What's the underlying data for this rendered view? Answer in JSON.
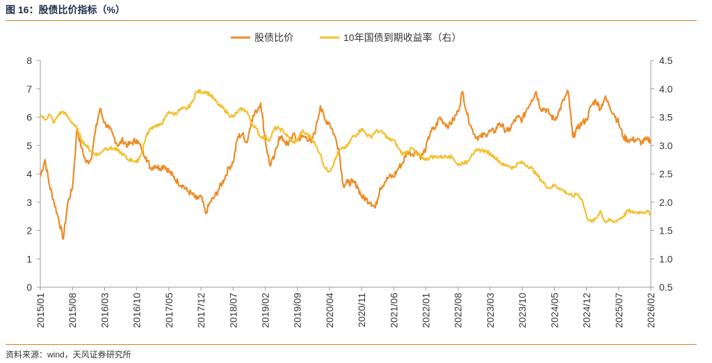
{
  "figure": {
    "title": "图 16：股债比价指标（%）",
    "source": "资料来源：wind，天风证券研究所"
  },
  "colors": {
    "accent": "#e07a1f",
    "series1": "#ee8a22",
    "series2": "#f5be2a",
    "axis": "#999999"
  },
  "chart_data": {
    "type": "line",
    "title": "",
    "grid": false,
    "legend_position": "top-center",
    "x_tick_labels": [
      "2015/01",
      "2015/08",
      "2016/03",
      "2016/10",
      "2017/05",
      "2017/12",
      "2018/07",
      "2019/02",
      "2019/09",
      "2020/04",
      "2020/11",
      "2021/06",
      "2022/01",
      "2022/08",
      "2023/03",
      "2023/10",
      "2024/05",
      "2024/12",
      "2025/07",
      "2026/02"
    ],
    "xlim": [
      "2015/01",
      "2026/02"
    ],
    "y_left": {
      "ylim": [
        0,
        8
      ],
      "ticks": [
        "0",
        "1",
        "2",
        "3",
        "4",
        "5",
        "6",
        "7",
        "8"
      ]
    },
    "y_right": {
      "ylim": [
        0.5,
        4.5
      ],
      "ticks": [
        "0.5",
        "1.0",
        "1.5",
        "2.0",
        "2.5",
        "3.0",
        "3.5",
        "4.0",
        "4.5"
      ]
    },
    "series": [
      {
        "name": "股债比价",
        "axis": "left",
        "color": "#ee8a22",
        "points": [
          [
            "2015/01",
            3.9
          ],
          [
            "2015/02",
            4.5
          ],
          [
            "2015/03",
            3.6
          ],
          [
            "2015/04",
            3.0
          ],
          [
            "2015/05",
            2.4
          ],
          [
            "2015/06",
            1.7
          ],
          [
            "2015/07",
            3.0
          ],
          [
            "2015/08",
            3.5
          ],
          [
            "2015/09",
            5.6
          ],
          [
            "2015/10",
            4.9
          ],
          [
            "2015/11",
            4.4
          ],
          [
            "2015/12",
            4.5
          ],
          [
            "2016/01",
            5.5
          ],
          [
            "2016/02",
            6.3
          ],
          [
            "2016/03",
            5.8
          ],
          [
            "2016/04",
            5.6
          ],
          [
            "2016/05",
            5.3
          ],
          [
            "2016/06",
            5.0
          ],
          [
            "2016/07",
            5.2
          ],
          [
            "2016/08",
            5.0
          ],
          [
            "2016/09",
            5.1
          ],
          [
            "2016/10",
            5.2
          ],
          [
            "2016/11",
            4.9
          ],
          [
            "2016/12",
            4.6
          ],
          [
            "2017/01",
            4.2
          ],
          [
            "2017/02",
            4.3
          ],
          [
            "2017/03",
            4.2
          ],
          [
            "2017/04",
            4.3
          ],
          [
            "2017/05",
            4.1
          ],
          [
            "2017/06",
            3.9
          ],
          [
            "2017/07",
            3.7
          ],
          [
            "2017/08",
            3.6
          ],
          [
            "2017/09",
            3.4
          ],
          [
            "2017/10",
            3.3
          ],
          [
            "2017/11",
            3.1
          ],
          [
            "2017/12",
            3.2
          ],
          [
            "2018/01",
            2.6
          ],
          [
            "2018/02",
            3.0
          ],
          [
            "2018/03",
            3.2
          ],
          [
            "2018/04",
            3.5
          ],
          [
            "2018/05",
            3.8
          ],
          [
            "2018/06",
            4.2
          ],
          [
            "2018/07",
            4.4
          ],
          [
            "2018/08",
            5.3
          ],
          [
            "2018/09",
            5.4
          ],
          [
            "2018/10",
            5.1
          ],
          [
            "2018/11",
            5.9
          ],
          [
            "2018/12",
            6.2
          ],
          [
            "2019/01",
            6.5
          ],
          [
            "2019/02",
            5.2
          ],
          [
            "2019/03",
            4.3
          ],
          [
            "2019/04",
            4.6
          ],
          [
            "2019/05",
            5.3
          ],
          [
            "2019/06",
            5.2
          ],
          [
            "2019/07",
            5.0
          ],
          [
            "2019/08",
            5.4
          ],
          [
            "2019/09",
            5.2
          ],
          [
            "2019/10",
            5.3
          ],
          [
            "2019/11",
            5.3
          ],
          [
            "2019/12",
            5.1
          ],
          [
            "2020/01",
            5.6
          ],
          [
            "2020/02",
            6.4
          ],
          [
            "2020/03",
            5.9
          ],
          [
            "2020/04",
            5.8
          ],
          [
            "2020/05",
            5.4
          ],
          [
            "2020/06",
            4.9
          ],
          [
            "2020/07",
            3.6
          ],
          [
            "2020/08",
            3.7
          ],
          [
            "2020/09",
            3.7
          ],
          [
            "2020/10",
            3.6
          ],
          [
            "2020/11",
            3.2
          ],
          [
            "2020/12",
            3.1
          ],
          [
            "2021/01",
            3.0
          ],
          [
            "2021/02",
            2.8
          ],
          [
            "2021/03",
            3.5
          ],
          [
            "2021/04",
            3.7
          ],
          [
            "2021/05",
            3.9
          ],
          [
            "2021/06",
            3.9
          ],
          [
            "2021/07",
            4.2
          ],
          [
            "2021/08",
            4.4
          ],
          [
            "2021/09",
            4.8
          ],
          [
            "2021/10",
            4.7
          ],
          [
            "2021/11",
            4.8
          ],
          [
            "2021/12",
            4.6
          ],
          [
            "2022/01",
            4.9
          ],
          [
            "2022/02",
            5.5
          ],
          [
            "2022/03",
            5.6
          ],
          [
            "2022/04",
            6.0
          ],
          [
            "2022/05",
            5.8
          ],
          [
            "2022/06",
            5.7
          ],
          [
            "2022/07",
            5.9
          ],
          [
            "2022/08",
            6.2
          ],
          [
            "2022/09",
            6.9
          ],
          [
            "2022/10",
            6.1
          ],
          [
            "2022/11",
            5.6
          ],
          [
            "2022/12",
            5.3
          ],
          [
            "2023/01",
            5.3
          ],
          [
            "2023/02",
            5.4
          ],
          [
            "2023/03",
            5.5
          ],
          [
            "2023/04",
            5.5
          ],
          [
            "2023/05",
            5.8
          ],
          [
            "2023/06",
            5.6
          ],
          [
            "2023/07",
            5.5
          ],
          [
            "2023/08",
            5.8
          ],
          [
            "2023/09",
            6.0
          ],
          [
            "2023/10",
            5.9
          ],
          [
            "2023/11",
            6.3
          ],
          [
            "2023/12",
            6.6
          ],
          [
            "2024/01",
            6.9
          ],
          [
            "2024/02",
            6.3
          ],
          [
            "2024/03",
            6.3
          ],
          [
            "2024/04",
            6.1
          ],
          [
            "2024/05",
            5.9
          ],
          [
            "2024/06",
            6.2
          ],
          [
            "2024/07",
            6.6
          ],
          [
            "2024/08",
            6.9
          ],
          [
            "2024/09",
            5.3
          ],
          [
            "2024/10",
            5.6
          ],
          [
            "2024/11",
            5.8
          ],
          [
            "2024/12",
            5.9
          ],
          [
            "2025/01",
            6.4
          ],
          [
            "2025/02",
            6.6
          ],
          [
            "2025/03",
            6.3
          ],
          [
            "2025/04",
            6.7
          ],
          [
            "2025/05",
            6.4
          ],
          [
            "2025/06",
            6.1
          ],
          [
            "2025/07",
            5.8
          ],
          [
            "2025/08",
            5.3
          ],
          [
            "2025/09",
            5.2
          ],
          [
            "2025/10",
            5.2
          ],
          [
            "2025/11",
            5.2
          ],
          [
            "2025/12",
            5.1
          ],
          [
            "2026/01",
            5.2
          ],
          [
            "2026/02",
            5.2
          ]
        ]
      },
      {
        "name": "10年国债到期收益率（右）",
        "axis": "right",
        "color": "#f5be2a",
        "points": [
          [
            "2015/01",
            3.55
          ],
          [
            "2015/02",
            3.45
          ],
          [
            "2015/03",
            3.55
          ],
          [
            "2015/04",
            3.4
          ],
          [
            "2015/05",
            3.55
          ],
          [
            "2015/06",
            3.6
          ],
          [
            "2015/07",
            3.5
          ],
          [
            "2015/08",
            3.4
          ],
          [
            "2015/09",
            3.3
          ],
          [
            "2015/10",
            3.1
          ],
          [
            "2015/11",
            3.0
          ],
          [
            "2015/12",
            2.9
          ],
          [
            "2016/01",
            2.85
          ],
          [
            "2016/02",
            2.85
          ],
          [
            "2016/03",
            2.95
          ],
          [
            "2016/04",
            2.95
          ],
          [
            "2016/05",
            2.95
          ],
          [
            "2016/06",
            2.9
          ],
          [
            "2016/07",
            2.85
          ],
          [
            "2016/08",
            2.75
          ],
          [
            "2016/09",
            2.75
          ],
          [
            "2016/10",
            2.7
          ],
          [
            "2016/11",
            2.85
          ],
          [
            "2016/12",
            3.15
          ],
          [
            "2017/01",
            3.3
          ],
          [
            "2017/02",
            3.35
          ],
          [
            "2017/03",
            3.35
          ],
          [
            "2017/04",
            3.45
          ],
          [
            "2017/05",
            3.6
          ],
          [
            "2017/06",
            3.55
          ],
          [
            "2017/07",
            3.6
          ],
          [
            "2017/08",
            3.65
          ],
          [
            "2017/09",
            3.65
          ],
          [
            "2017/10",
            3.75
          ],
          [
            "2017/11",
            3.95
          ],
          [
            "2017/12",
            3.95
          ],
          [
            "2018/01",
            3.95
          ],
          [
            "2018/02",
            3.9
          ],
          [
            "2018/03",
            3.8
          ],
          [
            "2018/04",
            3.7
          ],
          [
            "2018/05",
            3.65
          ],
          [
            "2018/06",
            3.55
          ],
          [
            "2018/07",
            3.5
          ],
          [
            "2018/08",
            3.6
          ],
          [
            "2018/09",
            3.65
          ],
          [
            "2018/10",
            3.6
          ],
          [
            "2018/11",
            3.4
          ],
          [
            "2018/12",
            3.3
          ],
          [
            "2019/01",
            3.15
          ],
          [
            "2019/02",
            3.15
          ],
          [
            "2019/03",
            3.1
          ],
          [
            "2019/04",
            3.3
          ],
          [
            "2019/05",
            3.3
          ],
          [
            "2019/06",
            3.25
          ],
          [
            "2019/07",
            3.15
          ],
          [
            "2019/08",
            3.05
          ],
          [
            "2019/09",
            3.1
          ],
          [
            "2019/10",
            3.25
          ],
          [
            "2019/11",
            3.2
          ],
          [
            "2019/12",
            3.15
          ],
          [
            "2020/01",
            3.0
          ],
          [
            "2020/02",
            2.85
          ],
          [
            "2020/03",
            2.6
          ],
          [
            "2020/04",
            2.55
          ],
          [
            "2020/05",
            2.7
          ],
          [
            "2020/06",
            2.9
          ],
          [
            "2020/07",
            2.95
          ],
          [
            "2020/08",
            3.0
          ],
          [
            "2020/09",
            3.15
          ],
          [
            "2020/10",
            3.2
          ],
          [
            "2020/11",
            3.3
          ],
          [
            "2020/12",
            3.2
          ],
          [
            "2021/01",
            3.15
          ],
          [
            "2021/02",
            3.25
          ],
          [
            "2021/03",
            3.25
          ],
          [
            "2021/04",
            3.2
          ],
          [
            "2021/05",
            3.1
          ],
          [
            "2021/06",
            3.1
          ],
          [
            "2021/07",
            2.95
          ],
          [
            "2021/08",
            2.85
          ],
          [
            "2021/09",
            2.9
          ],
          [
            "2021/10",
            2.95
          ],
          [
            "2021/11",
            2.85
          ],
          [
            "2021/12",
            2.8
          ],
          [
            "2022/01",
            2.75
          ],
          [
            "2022/02",
            2.8
          ],
          [
            "2022/03",
            2.8
          ],
          [
            "2022/04",
            2.8
          ],
          [
            "2022/05",
            2.8
          ],
          [
            "2022/06",
            2.82
          ],
          [
            "2022/07",
            2.78
          ],
          [
            "2022/08",
            2.65
          ],
          [
            "2022/09",
            2.7
          ],
          [
            "2022/10",
            2.7
          ],
          [
            "2022/11",
            2.85
          ],
          [
            "2022/12",
            2.9
          ],
          [
            "2023/01",
            2.92
          ],
          [
            "2023/02",
            2.9
          ],
          [
            "2023/03",
            2.85
          ],
          [
            "2023/04",
            2.8
          ],
          [
            "2023/05",
            2.72
          ],
          [
            "2023/06",
            2.65
          ],
          [
            "2023/07",
            2.65
          ],
          [
            "2023/08",
            2.6
          ],
          [
            "2023/09",
            2.68
          ],
          [
            "2023/10",
            2.7
          ],
          [
            "2023/11",
            2.65
          ],
          [
            "2023/12",
            2.6
          ],
          [
            "2024/01",
            2.5
          ],
          [
            "2024/02",
            2.4
          ],
          [
            "2024/03",
            2.3
          ],
          [
            "2024/04",
            2.25
          ],
          [
            "2024/05",
            2.3
          ],
          [
            "2024/06",
            2.25
          ],
          [
            "2024/07",
            2.2
          ],
          [
            "2024/08",
            2.15
          ],
          [
            "2024/09",
            2.1
          ],
          [
            "2024/10",
            2.15
          ],
          [
            "2024/11",
            2.05
          ],
          [
            "2024/12",
            1.75
          ],
          [
            "2025/01",
            1.65
          ],
          [
            "2025/02",
            1.7
          ],
          [
            "2025/03",
            1.85
          ],
          [
            "2025/04",
            1.65
          ],
          [
            "2025/05",
            1.68
          ],
          [
            "2025/06",
            1.65
          ],
          [
            "2025/07",
            1.7
          ],
          [
            "2025/08",
            1.75
          ],
          [
            "2025/09",
            1.85
          ],
          [
            "2025/10",
            1.82
          ],
          [
            "2025/11",
            1.82
          ],
          [
            "2025/12",
            1.83
          ],
          [
            "2026/01",
            1.83
          ],
          [
            "2026/02",
            1.8
          ]
        ]
      }
    ]
  }
}
